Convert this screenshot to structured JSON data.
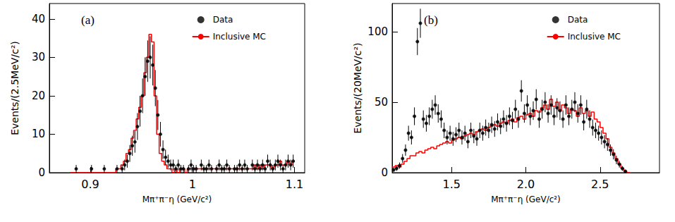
{
  "chart_data": [
    {
      "type": "histogram",
      "title": "(a)",
      "x_label": "Mπ⁺π⁻η (GeV/c²)",
      "y_label": "Events/(2.5MeV/c²)",
      "bins": [
        0.88,
        0.8825,
        0.885,
        0.8875,
        0.89,
        0.8925,
        0.895,
        0.8975,
        0.9,
        0.9025,
        0.905,
        0.9075,
        0.91,
        0.9125,
        0.915,
        0.9175,
        0.92,
        0.9225,
        0.925,
        0.9275,
        0.93,
        0.9325,
        0.935,
        0.9375,
        0.94,
        0.9425,
        0.945,
        0.9475,
        0.95,
        0.9525,
        0.955,
        0.9575,
        0.96,
        0.9625,
        0.965,
        0.9675,
        0.97,
        0.9725,
        0.975,
        0.9775,
        0.98,
        0.9825,
        0.985,
        0.9875,
        0.99,
        0.9925,
        0.995,
        0.9975,
        1.0,
        1.0025,
        1.005,
        1.0075,
        1.01,
        1.0125,
        1.015,
        1.0175,
        1.02,
        1.0225,
        1.025,
        1.0275,
        1.03,
        1.0325,
        1.035,
        1.0375,
        1.04,
        1.0425,
        1.045,
        1.0475,
        1.05,
        1.0525,
        1.055,
        1.0575,
        1.06,
        1.0625,
        1.065,
        1.0675,
        1.07,
        1.0725,
        1.075,
        1.0775,
        1.08,
        1.0825,
        1.085,
        1.0875,
        1.09,
        1.0925,
        1.095,
        1.0975,
        1.1
      ],
      "series": [
        {
          "name": "Data",
          "type": "scatter",
          "marker": "circle",
          "color": "#000000",
          "values": [
            null,
            null,
            1,
            null,
            null,
            null,
            null,
            null,
            1,
            null,
            null,
            null,
            null,
            1,
            null,
            null,
            null,
            null,
            1,
            null,
            1,
            2,
            3,
            5,
            7,
            8,
            12,
            16,
            20,
            25,
            29,
            30,
            28,
            22,
            15,
            10,
            6,
            4,
            3,
            2,
            2,
            1,
            2,
            1,
            1,
            null,
            1,
            2,
            1,
            1,
            null,
            2,
            1,
            1,
            2,
            1,
            null,
            1,
            2,
            1,
            1,
            2,
            1,
            null,
            1,
            1,
            2,
            1,
            2,
            1,
            null,
            2,
            1,
            2,
            1,
            2,
            1,
            3,
            2,
            1,
            2,
            3,
            2,
            1,
            2,
            3,
            2,
            3
          ],
          "errors": [
            null,
            null,
            1,
            null,
            null,
            null,
            null,
            null,
            1,
            null,
            null,
            null,
            null,
            1,
            null,
            null,
            null,
            null,
            1,
            null,
            1,
            1.4,
            1.7,
            2.2,
            2.6,
            2.8,
            3.5,
            4,
            4.5,
            5,
            5.4,
            5.5,
            5.3,
            4.7,
            3.9,
            3.2,
            2.4,
            2,
            1.7,
            1.4,
            1.4,
            1,
            1.4,
            1,
            1,
            null,
            1,
            1.4,
            1,
            1,
            null,
            1.4,
            1,
            1,
            1.4,
            1,
            null,
            1,
            1.4,
            1,
            1,
            1.4,
            1,
            null,
            1,
            1,
            1.4,
            1,
            1.4,
            1,
            null,
            1.4,
            1,
            1.4,
            1,
            1.4,
            1,
            1.7,
            1.4,
            1,
            1.4,
            1.7,
            1.4,
            1,
            1.4,
            1.7,
            1.4,
            1.7
          ]
        },
        {
          "name": "Inclusive MC",
          "type": "step",
          "color": "#ff0000",
          "values": [
            0,
            0,
            0,
            0,
            0,
            0,
            0,
            0,
            0,
            0,
            0,
            0,
            0,
            0,
            0,
            0,
            0,
            0,
            1,
            1,
            2,
            3,
            5,
            6,
            9,
            11,
            14,
            17,
            20,
            26,
            30,
            36,
            34,
            20,
            10,
            5,
            3,
            2,
            1,
            1,
            0,
            1,
            0,
            1,
            1,
            0,
            1,
            1,
            1,
            1,
            1,
            1,
            1,
            1,
            1,
            1,
            1,
            1,
            1,
            1,
            1,
            1,
            1,
            1,
            1,
            1,
            1,
            1,
            1,
            1,
            1,
            1,
            2,
            1,
            2,
            1,
            2,
            2,
            2,
            1,
            2,
            2,
            3,
            2,
            2,
            3,
            2,
            3
          ]
        }
      ],
      "xlim": [
        0.86,
        1.11
      ],
      "xticks": [
        0.9,
        1,
        1.1
      ],
      "ylim": [
        0,
        44
      ],
      "yticks": [
        0,
        10,
        20,
        30,
        40
      ],
      "grid": false,
      "legend": "upper right"
    },
    {
      "type": "histogram",
      "title": "(b)",
      "x_label": "Mπ⁺π⁻η (GeV/c²)",
      "y_label": "Events/(20MeV/c²)",
      "bins": [
        1.1,
        1.12,
        1.14,
        1.16,
        1.18,
        1.2,
        1.22,
        1.24,
        1.26,
        1.28,
        1.3,
        1.32,
        1.34,
        1.36,
        1.38,
        1.4,
        1.42,
        1.44,
        1.46,
        1.48,
        1.5,
        1.52,
        1.54,
        1.56,
        1.58,
        1.6,
        1.62,
        1.64,
        1.66,
        1.68,
        1.7,
        1.72,
        1.74,
        1.76,
        1.78,
        1.8,
        1.82,
        1.84,
        1.86,
        1.88,
        1.9,
        1.92,
        1.94,
        1.96,
        1.98,
        2.0,
        2.02,
        2.04,
        2.06,
        2.08,
        2.1,
        2.12,
        2.14,
        2.16,
        2.18,
        2.2,
        2.22,
        2.24,
        2.26,
        2.28,
        2.3,
        2.32,
        2.34,
        2.36,
        2.38,
        2.4,
        2.42,
        2.44,
        2.46,
        2.48,
        2.5,
        2.52,
        2.54,
        2.56,
        2.58,
        2.6,
        2.62,
        2.64,
        2.66,
        2.68,
        2.7
      ],
      "series": [
        {
          "name": "Data",
          "type": "scatter",
          "marker": "circle",
          "color": "#000000",
          "values": [
            2,
            3,
            5,
            10,
            16,
            28,
            25,
            40,
            93,
            106,
            38,
            35,
            40,
            45,
            48,
            42,
            38,
            30,
            25,
            28,
            24,
            27,
            30,
            25,
            28,
            22,
            30,
            26,
            24,
            30,
            28,
            32,
            30,
            34,
            31,
            36,
            33,
            38,
            35,
            40,
            37,
            45,
            38,
            58,
            42,
            48,
            40,
            44,
            52,
            38,
            45,
            50,
            42,
            48,
            40,
            46,
            44,
            38,
            48,
            40,
            45,
            50,
            42,
            48,
            36,
            45,
            38,
            32,
            30,
            28,
            25,
            22,
            20,
            16,
            13,
            9,
            6,
            3,
            1,
            null
          ],
          "errors": [
            1.4,
            1.7,
            2.2,
            3.2,
            4,
            5.3,
            5,
            6.3,
            9.6,
            10.3,
            6.2,
            5.9,
            6.3,
            6.7,
            6.9,
            6.5,
            6.2,
            5.5,
            5,
            5.3,
            4.9,
            5.2,
            5.5,
            5,
            5.3,
            4.7,
            5.5,
            5.1,
            4.9,
            5.5,
            5.3,
            5.7,
            5.5,
            5.8,
            5.6,
            6,
            5.7,
            6.2,
            5.9,
            6.3,
            6.1,
            6.7,
            6.2,
            7.6,
            6.5,
            6.9,
            6.3,
            6.6,
            7.2,
            6.2,
            6.7,
            7.1,
            6.5,
            6.9,
            6.3,
            6.8,
            6.6,
            6.2,
            6.9,
            6.3,
            6.7,
            7.1,
            6.5,
            6.9,
            6,
            6.7,
            6.2,
            5.7,
            5.5,
            5.3,
            5,
            4.7,
            4.5,
            4,
            3.6,
            3,
            2.4,
            1.7,
            1,
            null
          ]
        },
        {
          "name": "Inclusive MC",
          "type": "step",
          "color": "#ff0000",
          "values": [
            4,
            5,
            4,
            6,
            8,
            10,
            12,
            12,
            14,
            15,
            14,
            16,
            17,
            18,
            17,
            19,
            20,
            21,
            22,
            21,
            23,
            24,
            25,
            24,
            26,
            27,
            28,
            27,
            29,
            30,
            31,
            30,
            32,
            33,
            34,
            33,
            35,
            36,
            35,
            37,
            38,
            36,
            39,
            40,
            38,
            41,
            42,
            40,
            44,
            43,
            46,
            48,
            45,
            52,
            47,
            50,
            44,
            48,
            46,
            42,
            45,
            44,
            40,
            46,
            42,
            44,
            40,
            43,
            38,
            36,
            32,
            28,
            24,
            18,
            14,
            10,
            6,
            3,
            1,
            0
          ]
        }
      ],
      "xlim": [
        1.1,
        2.9
      ],
      "xticks": [
        1.5,
        {
          "value": 2,
          "label": "2.0"
        },
        2.5
      ],
      "ylim": [
        0,
        120
      ],
      "yticks": [
        0,
        50,
        100
      ],
      "grid": false,
      "legend": "upper right"
    }
  ]
}
